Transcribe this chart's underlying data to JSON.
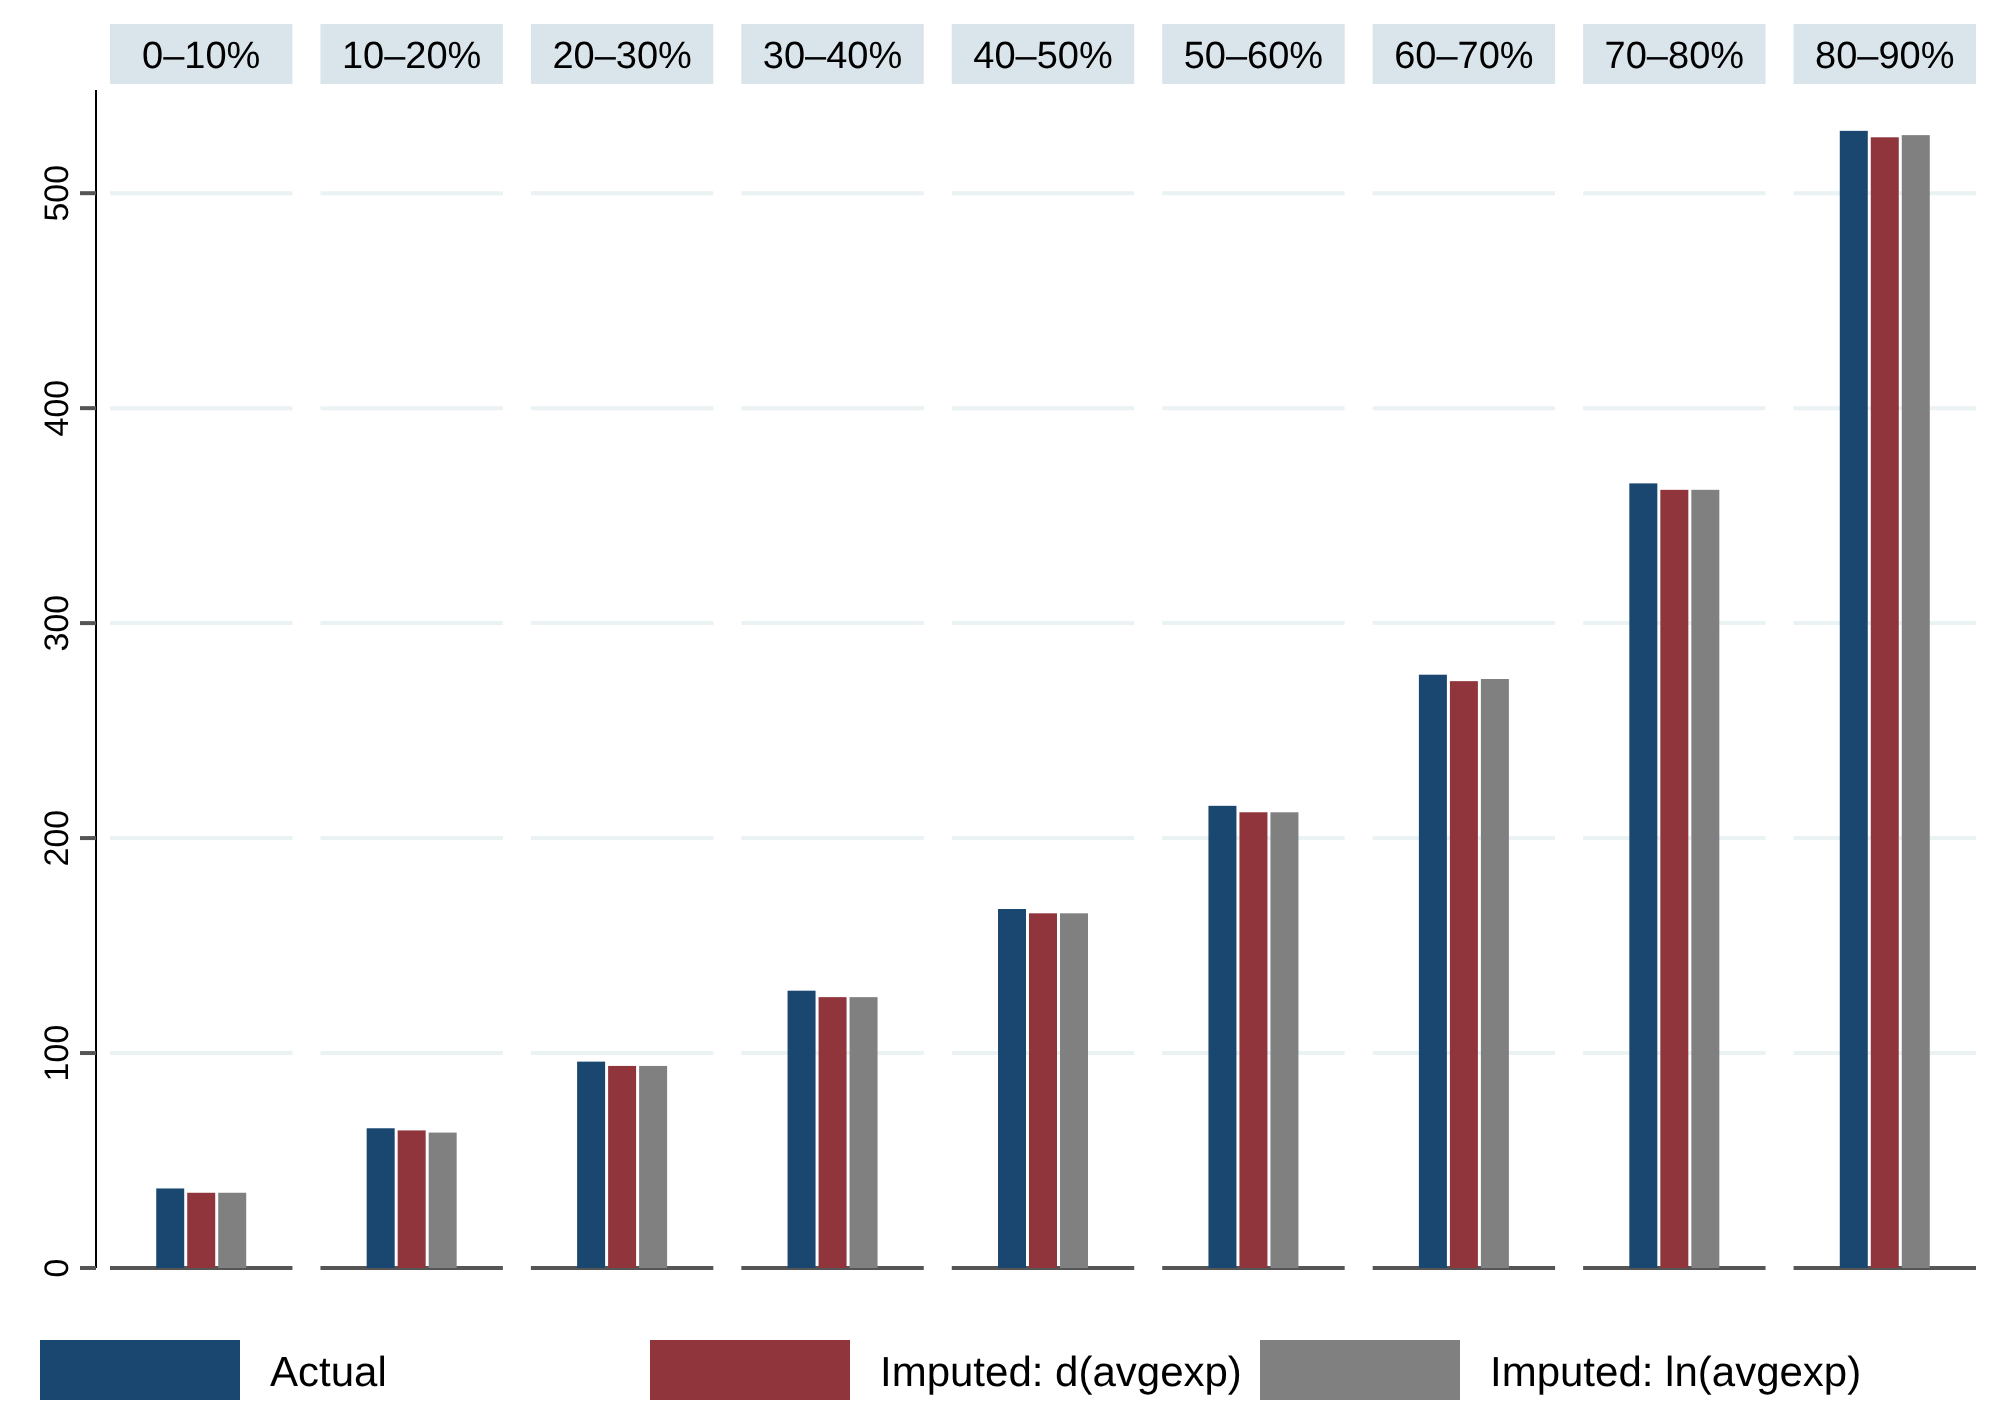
{
  "chart_data": {
    "type": "bar",
    "categories": [
      "0–10%",
      "10–20%",
      "20–30%",
      "30–40%",
      "40–50%",
      "50–60%",
      "60–70%",
      "70–80%",
      "80–90%"
    ],
    "series": [
      {
        "name": "Actual",
        "color": "#1a476f",
        "values": [
          37,
          65,
          96,
          129,
          167,
          215,
          276,
          365,
          529
        ]
      },
      {
        "name": "Imputed: d(avgexp)",
        "color": "#90353b",
        "values": [
          35,
          64,
          94,
          126,
          165,
          212,
          273,
          362,
          526
        ]
      },
      {
        "name": "Imputed: ln(avgexp)",
        "color": "#808080",
        "values": [
          35,
          63,
          94,
          126,
          165,
          212,
          274,
          362,
          527
        ]
      }
    ],
    "ylim": [
      0,
      548
    ],
    "yticks": [
      0,
      100,
      200,
      300,
      400,
      500
    ],
    "grid": "y",
    "legend": "bottom"
  }
}
